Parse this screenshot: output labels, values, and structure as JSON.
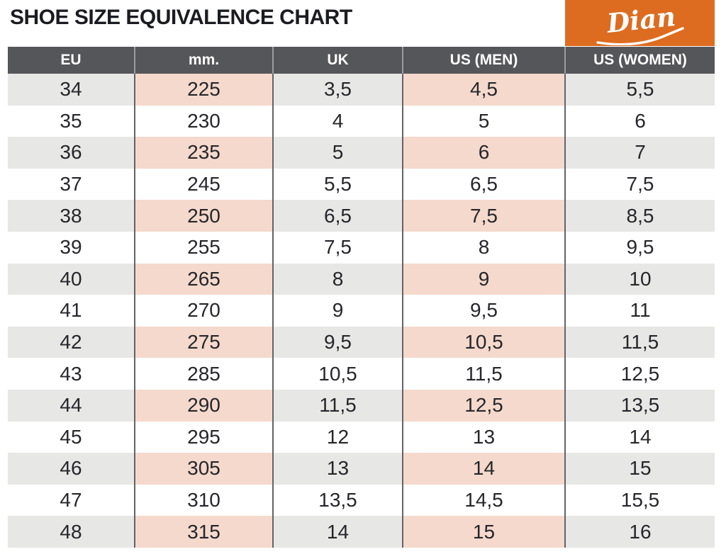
{
  "page": {
    "title": "SHOE SIZE EQUIVALENCE CHART",
    "brand": "Dian"
  },
  "colors": {
    "accent_orange": "#DD6C20",
    "header_gray": "#55565A",
    "header_text": "#FFFFFF",
    "band_gray": "#E7E7E6",
    "band_pink": "#F4D9CC",
    "title_text": "#1B1C21",
    "cell_text": "#26262B",
    "body_separator": "#636368",
    "header_separator": "#9A9AA0"
  },
  "chart_data": {
    "type": "table",
    "title": "SHOE SIZE EQUIVALENCE CHART",
    "columns": [
      "EU",
      "mm.",
      "UK",
      "US (MEN)",
      "US (WOMEN)"
    ],
    "rows": [
      [
        "34",
        "225",
        "3,5",
        "4,5",
        "5,5"
      ],
      [
        "35",
        "230",
        "4",
        "5",
        "6"
      ],
      [
        "36",
        "235",
        "5",
        "6",
        "7"
      ],
      [
        "37",
        "245",
        "5,5",
        "6,5",
        "7,5"
      ],
      [
        "38",
        "250",
        "6,5",
        "7,5",
        "8,5"
      ],
      [
        "39",
        "255",
        "7,5",
        "8",
        "9,5"
      ],
      [
        "40",
        "265",
        "8",
        "9",
        "10"
      ],
      [
        "41",
        "270",
        "9",
        "9,5",
        "11"
      ],
      [
        "42",
        "275",
        "9,5",
        "10,5",
        "11,5"
      ],
      [
        "43",
        "285",
        "10,5",
        "11,5",
        "12,5"
      ],
      [
        "44",
        "290",
        "11,5",
        "12,5",
        "13,5"
      ],
      [
        "45",
        "295",
        "12",
        "13",
        "14"
      ],
      [
        "46",
        "305",
        "13",
        "14",
        "15"
      ],
      [
        "47",
        "310",
        "13,5",
        "14,5",
        "15,5"
      ],
      [
        "48",
        "315",
        "14",
        "15",
        "16"
      ]
    ],
    "layout": {
      "banding": "alternating rows starting with first row banded",
      "banded_gray_columns": [
        "EU",
        "UK",
        "US (WOMEN)"
      ],
      "banded_pink_columns": [
        "mm.",
        "US (MEN)"
      ]
    }
  }
}
